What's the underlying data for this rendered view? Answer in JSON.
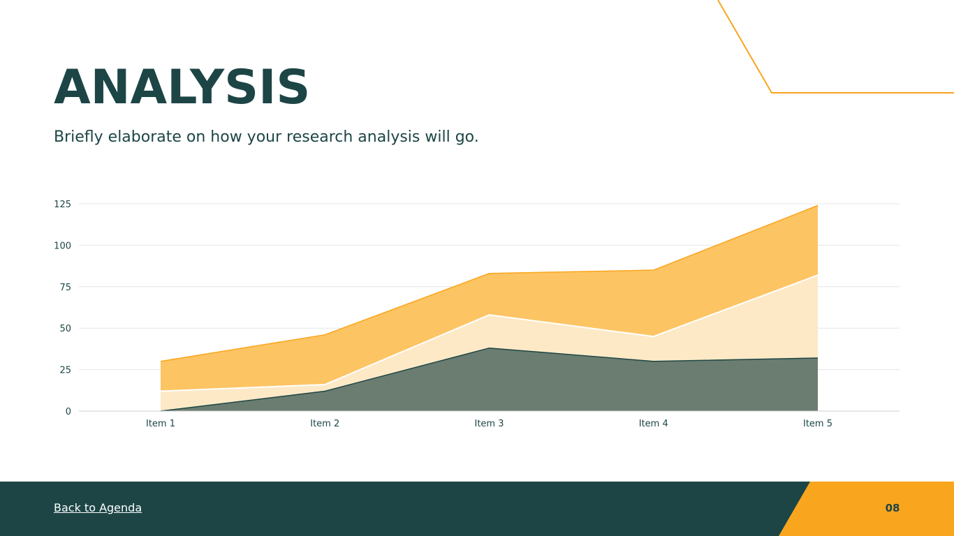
{
  "slide": {
    "title": "ANALYSIS",
    "subtitle": "Briefly elaborate on how your research analysis will go.",
    "back_link": "Back to Agenda",
    "page_number": "08"
  },
  "colors": {
    "primary": "#1d4546",
    "accent": "#f9a51e",
    "series_bottom": "#6b7d70",
    "series_middle": "#fde9c6",
    "series_top": "#fdc463"
  },
  "chart_data": {
    "type": "area",
    "stacked": true,
    "categories": [
      "Item 1",
      "Item 2",
      "Item 3",
      "Item 4",
      "Item 5"
    ],
    "series": [
      {
        "values": [
          0,
          12,
          38,
          30,
          32
        ]
      },
      {
        "values": [
          12,
          4,
          20,
          15,
          50
        ]
      },
      {
        "values": [
          18,
          30,
          25,
          40,
          42
        ]
      }
    ],
    "y_ticks": [
      0,
      25,
      50,
      75,
      100,
      125
    ],
    "ylim": [
      0,
      125
    ],
    "grid": true,
    "legend": "none"
  }
}
